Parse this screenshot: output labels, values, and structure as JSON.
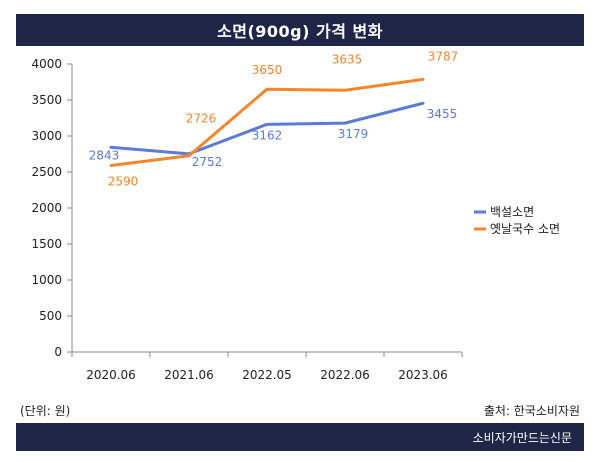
{
  "header": {
    "title": "소면(900g) 가격 변화"
  },
  "notes": {
    "unit": "(단위: 원)",
    "source": "출처: 한국소비자원"
  },
  "footer": {
    "publisher": "소비자가만드는신문"
  },
  "chart_data": {
    "type": "line",
    "title": "소면(900g) 가격 변화",
    "categories": [
      "2020.06",
      "2021.06",
      "2022.05",
      "2022.06",
      "2023.06"
    ],
    "ylim": [
      0,
      4000
    ],
    "yticks": [
      0,
      500,
      1000,
      1500,
      2000,
      2500,
      3000,
      3500,
      4000
    ],
    "grid": false,
    "legend_position": "right",
    "series": [
      {
        "name": "백설소면",
        "color": "#5b7bd5",
        "values": [
          2843,
          2752,
          3162,
          3179,
          3455
        ]
      },
      {
        "name": "옛날국수 소면",
        "color": "#f5862b",
        "values": [
          2590,
          2726,
          3650,
          3635,
          3787
        ]
      }
    ]
  }
}
